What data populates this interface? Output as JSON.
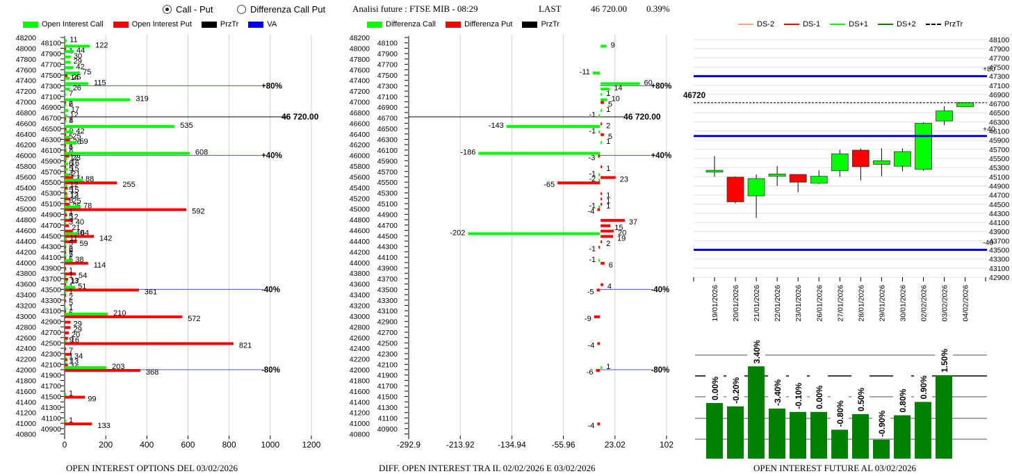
{
  "header": {
    "mode_options": [
      {
        "label": "Call - Put",
        "selected": true
      },
      {
        "label": "Differenza Call Put",
        "selected": false
      }
    ],
    "title": "Analisi future : FTSE MIB - 08:29",
    "last_label": "LAST",
    "last_value": "46 720.00",
    "last_change": "0.39%"
  },
  "colors": {
    "call": "#00ff00",
    "put": "#ff0000",
    "przTr": "#000000",
    "va": "#0000ff",
    "ds_minus2": "#f4a582",
    "ds_minus1": "#ff0000",
    "ds_plus1": "#00ff00",
    "ds_plus2": "#008000",
    "oi_future_bar": "#008000"
  },
  "chart_data": [
    {
      "id": "oi_options",
      "type": "bar",
      "orientation": "horizontal",
      "title": "OPEN INTEREST OPTIONS DEL 03/02/2026",
      "legend": [
        "Open Interest Call",
        "Open Interest Put",
        "PrzTr",
        "VA"
      ],
      "legend_position": "top",
      "xlabel": "",
      "ylabel": "Strike",
      "xlim": [
        0,
        1200
      ],
      "x_ticks": [
        "0",
        "200",
        "400",
        "600",
        "800",
        "1000",
        "1200"
      ],
      "ylim": [
        40800,
        48200
      ],
      "y_tick_step": 100,
      "price_line": {
        "value": 46720,
        "label": "46 720.00"
      },
      "va_lines": [
        {
          "strike": 47300,
          "label": "+80%"
        },
        {
          "strike": 46000,
          "label": "+40%"
        },
        {
          "strike": 43500,
          "label": "-40%"
        },
        {
          "strike": 42000,
          "label": "-80%"
        }
      ],
      "va_line_extent": 957,
      "rows": [
        {
          "strike": 48100,
          "call": 11,
          "put": 0
        },
        {
          "strike": 48000,
          "call": 122,
          "put": 1
        },
        {
          "strike": 47900,
          "call": 44,
          "put": 0
        },
        {
          "strike": 47800,
          "call": 30,
          "put": 0
        },
        {
          "strike": 47700,
          "call": 29,
          "put": 0
        },
        {
          "strike": 47600,
          "call": 42,
          "put": 0
        },
        {
          "strike": 47500,
          "call": 75,
          "put": 14
        },
        {
          "strike": 47400,
          "call": 25,
          "put": 0
        },
        {
          "strike": 47300,
          "call": 115,
          "put": 0
        },
        {
          "strike": 47200,
          "call": 26,
          "put": 0
        },
        {
          "strike": 47100,
          "call": 7,
          "put": 0
        },
        {
          "strike": 47000,
          "call": 319,
          "put": 6
        },
        {
          "strike": 46900,
          "call": 2,
          "put": 0
        },
        {
          "strike": 46800,
          "call": 17,
          "put": 0
        },
        {
          "strike": 46700,
          "call": 12,
          "put": 1
        },
        {
          "strike": 46600,
          "call": 8,
          "put": 0
        },
        {
          "strike": 46500,
          "call": 535,
          "put": 9
        },
        {
          "strike": 46400,
          "call": 42,
          "put": 5
        },
        {
          "strike": 46300,
          "call": 25,
          "put": 26
        },
        {
          "strike": 46200,
          "call": 59,
          "put": 1
        },
        {
          "strike": 46100,
          "call": 6,
          "put": 8
        },
        {
          "strike": 46000,
          "call": 608,
          "put": 23
        },
        {
          "strike": 45900,
          "call": 12,
          "put": 6
        },
        {
          "strike": 45800,
          "call": 16,
          "put": 5
        },
        {
          "strike": 45700,
          "call": 15,
          "put": 4
        },
        {
          "strike": 45600,
          "call": 21,
          "put": 41
        },
        {
          "strike": 45500,
          "call": 88,
          "put": 255
        },
        {
          "strike": 45400,
          "call": 12,
          "put": 15
        },
        {
          "strike": 45300,
          "call": 5,
          "put": 12
        },
        {
          "strike": 45200,
          "call": 13,
          "put": 25
        },
        {
          "strike": 45100,
          "call": 8,
          "put": 25
        },
        {
          "strike": 45000,
          "call": 78,
          "put": 592
        },
        {
          "strike": 44900,
          "call": 1,
          "put": 12
        },
        {
          "strike": 44800,
          "call": 5,
          "put": 40
        },
        {
          "strike": 44700,
          "call": 3,
          "put": 21
        },
        {
          "strike": 44600,
          "call": 0,
          "put": 40
        },
        {
          "strike": 44500,
          "call": 64,
          "put": 142
        },
        {
          "strike": 44400,
          "call": 11,
          "put": 59
        },
        {
          "strike": 44300,
          "call": 5,
          "put": 2
        },
        {
          "strike": 44200,
          "call": 6,
          "put": 5
        },
        {
          "strike": 44100,
          "call": 7,
          "put": 5
        },
        {
          "strike": 44000,
          "call": 38,
          "put": 114
        },
        {
          "strike": 43900,
          "call": 0,
          "put": 1
        },
        {
          "strike": 43800,
          "call": 0,
          "put": 54
        },
        {
          "strike": 43700,
          "call": 1,
          "put": 17
        },
        {
          "strike": 43600,
          "call": 13,
          "put": 1
        },
        {
          "strike": 43500,
          "call": 51,
          "put": 361
        },
        {
          "strike": 43400,
          "call": 1,
          "put": 2
        },
        {
          "strike": 43300,
          "call": 0,
          "put": 5
        },
        {
          "strike": 43100,
          "call": 1,
          "put": 6
        },
        {
          "strike": 43000,
          "call": 210,
          "put": 572
        },
        {
          "strike": 42900,
          "call": 0,
          "put": 29
        },
        {
          "strike": 42800,
          "call": 0,
          "put": 29
        },
        {
          "strike": 42700,
          "call": 0,
          "put": 20
        },
        {
          "strike": 42600,
          "call": 0,
          "put": 16
        },
        {
          "strike": 42500,
          "call": 9,
          "put": 821
        },
        {
          "strike": 42400,
          "call": 0,
          "put": 7
        },
        {
          "strike": 42300,
          "call": 0,
          "put": 34
        },
        {
          "strike": 42200,
          "call": 1,
          "put": 13
        },
        {
          "strike": 42100,
          "call": 1,
          "put": 16
        },
        {
          "strike": 42000,
          "call": 203,
          "put": 368
        },
        {
          "strike": 41500,
          "call": 1,
          "put": 99
        },
        {
          "strike": 41000,
          "call": 1,
          "put": 133
        }
      ]
    },
    {
      "id": "diff_oi",
      "type": "bar",
      "orientation": "horizontal",
      "title": "DIFF. OPEN INTEREST TRA IL 02/02/2026 E 03/02/2026",
      "legend": [
        "Differenza Call",
        "Differenza Put",
        "PrzTr"
      ],
      "legend_position": "top",
      "xlim": [
        -292.9,
        102
      ],
      "x_ticks": [
        "-292.9",
        "-213.92",
        "-134.94",
        "-55.96",
        "23.02",
        "102"
      ],
      "ylim": [
        40800,
        48200
      ],
      "price_line": {
        "value": 46720,
        "label": "46 720.00"
      },
      "va_lines": [
        {
          "strike": 47300,
          "label": "+80%"
        },
        {
          "strike": 46000,
          "label": "+40%"
        },
        {
          "strike": 43500,
          "label": "-40%"
        },
        {
          "strike": 42000,
          "label": "-80%"
        }
      ],
      "va_line_extent": 78,
      "rows": [
        {
          "strike": 48000,
          "call": 9,
          "put": 0
        },
        {
          "strike": 47500,
          "call": -11,
          "put": 0
        },
        {
          "strike": 47300,
          "call": 60,
          "put": 0
        },
        {
          "strike": 47200,
          "call": 14,
          "put": 0
        },
        {
          "strike": 47100,
          "call": 1,
          "put": 0
        },
        {
          "strike": 47000,
          "call": 10,
          "put": 5
        },
        {
          "strike": 46800,
          "call": 1,
          "put": 0
        },
        {
          "strike": 46700,
          "call": -1,
          "put": 0
        },
        {
          "strike": 46600,
          "call": 0,
          "put": 2
        },
        {
          "strike": 46500,
          "call": -143,
          "put": 0
        },
        {
          "strike": 46400,
          "call": -1,
          "put": 5
        },
        {
          "strike": 46200,
          "call": 1,
          "put": 0
        },
        {
          "strike": 46000,
          "call": -186,
          "put": -3
        },
        {
          "strike": 45800,
          "call": 0,
          "put": 1
        },
        {
          "strike": 45600,
          "call": -1,
          "put": 23
        },
        {
          "strike": 45500,
          "call": -2,
          "put": -65
        },
        {
          "strike": 45300,
          "call": 0,
          "put": 1
        },
        {
          "strike": 45200,
          "call": 0,
          "put": 1
        },
        {
          "strike": 45100,
          "call": 0,
          "put": 1
        },
        {
          "strike": 45000,
          "call": -1,
          "put": -4
        },
        {
          "strike": 44800,
          "call": 0,
          "put": 37
        },
        {
          "strike": 44700,
          "call": 0,
          "put": 15
        },
        {
          "strike": 44600,
          "call": 0,
          "put": 20
        },
        {
          "strike": 44500,
          "call": -202,
          "put": 19
        },
        {
          "strike": 44400,
          "call": 0,
          "put": 2
        },
        {
          "strike": 44300,
          "call": 0,
          "put": -1
        },
        {
          "strike": 44000,
          "call": -1,
          "put": 6
        },
        {
          "strike": 43600,
          "call": 0,
          "put": 4
        },
        {
          "strike": 43500,
          "call": 0,
          "put": -5
        },
        {
          "strike": 43000,
          "call": 0,
          "put": -9
        },
        {
          "strike": 42500,
          "call": 0,
          "put": -4
        },
        {
          "strike": 42000,
          "call": 1,
          "put": -6
        },
        {
          "strike": 41000,
          "call": 0,
          "put": -4
        }
      ]
    },
    {
      "id": "candles",
      "type": "candlestick",
      "legend": [
        "DS-2",
        "DS-1",
        "DS+1",
        "DS+2",
        "PrzTr"
      ],
      "legend_position": "top",
      "ylim": [
        42900,
        48100
      ],
      "y_ticks": [
        48100,
        47900,
        47700,
        47500,
        47300,
        47100,
        46900,
        46700,
        46500,
        46300,
        46100,
        45900,
        45700,
        45500,
        45300,
        45100,
        44900,
        44700,
        44500,
        44300,
        44100,
        43900,
        43700,
        43500,
        43300,
        43100,
        42900
      ],
      "price_line": {
        "value": 46720,
        "label": "46720"
      },
      "va_lines": [
        {
          "value": 47300,
          "label": "+80"
        },
        {
          "value": 45990,
          "label": "+40"
        },
        {
          "value": 43500,
          "label": "-40"
        }
      ],
      "candles": [
        {
          "date": "19/01/2026",
          "open": 45200,
          "close": 45240,
          "high": 45550,
          "low": 45100
        },
        {
          "date": "20/01/2026",
          "open": 45090,
          "close": 44550,
          "high": 45110,
          "low": 44520
        },
        {
          "date": "21/01/2026",
          "open": 44680,
          "close": 45060,
          "high": 45150,
          "low": 44200
        },
        {
          "date": "22/01/2026",
          "open": 45110,
          "close": 45160,
          "high": 45330,
          "low": 44900
        },
        {
          "date": "23/01/2026",
          "open": 45150,
          "close": 44980,
          "high": 45150,
          "low": 44760
        },
        {
          "date": "26/01/2026",
          "open": 44960,
          "close": 45110,
          "high": 45240,
          "low": 44940
        },
        {
          "date": "27/01/2026",
          "open": 45230,
          "close": 45600,
          "high": 45690,
          "low": 45100
        },
        {
          "date": "28/01/2026",
          "open": 45680,
          "close": 45320,
          "high": 45720,
          "low": 45020
        },
        {
          "date": "29/01/2026",
          "open": 45370,
          "close": 45450,
          "high": 45720,
          "low": 45110
        },
        {
          "date": "30/01/2026",
          "open": 45330,
          "close": 45650,
          "high": 45720,
          "low": 45220
        },
        {
          "date": "02/02/2026",
          "open": 45260,
          "close": 46270,
          "high": 46290,
          "low": 45230
        },
        {
          "date": "03/02/2026",
          "open": 46320,
          "close": 46540,
          "high": 46640,
          "low": 46230
        },
        {
          "date": "04/02/2026",
          "open": 46630,
          "close": 46720,
          "high": 46720,
          "low": 46630
        }
      ]
    },
    {
      "id": "oi_future",
      "type": "bar",
      "title": "OPEN INTEREST FUTURE AL 03/02/2026",
      "relative_heights": [
        0.5,
        0.47,
        0.83,
        0.45,
        0.42,
        0.42,
        0.26,
        0.4,
        0.17,
        0.39,
        0.51,
        0.75
      ],
      "labels": [
        "0.00%",
        "-0.20%",
        "3.40%",
        "-3.40%",
        "-0.10%",
        "0.00%",
        "-0.80%",
        "0.50%",
        "-0.90%",
        "0.80%",
        "0.90%",
        "1.50%"
      ],
      "values_pct": [
        0.0,
        -0.2,
        3.4,
        -3.4,
        -0.1,
        0.0,
        -0.8,
        0.5,
        -0.9,
        0.8,
        0.9,
        1.5
      ]
    }
  ]
}
